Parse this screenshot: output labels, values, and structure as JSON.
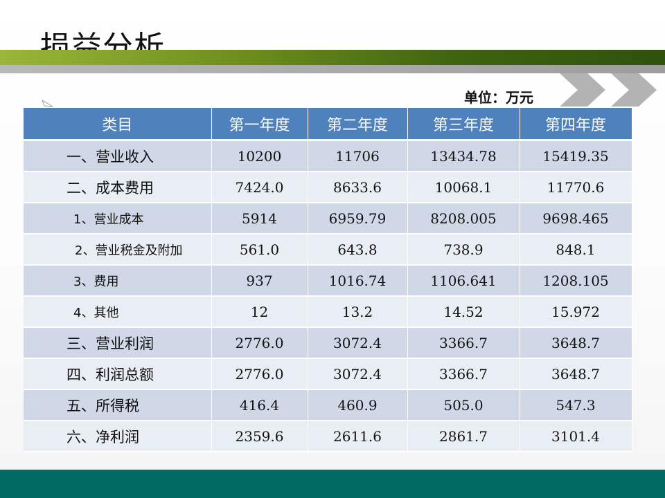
{
  "slide": {
    "title": "损益分析",
    "unit_label": "单位：万元"
  },
  "colors": {
    "header_blue": "#4f81bd",
    "row_dark": "#d0d8e8",
    "row_light": "#e9edf4",
    "band_green": "#4b7014",
    "footer_teal": "#006b63"
  },
  "table": {
    "headers": [
      "类目",
      "第一年度",
      "第二年度",
      "第三年度",
      "第四年度"
    ],
    "rows": [
      {
        "category": "一、营业收入",
        "level": 0,
        "values": [
          "10200",
          "11706",
          "13434.78",
          "15419.35"
        ]
      },
      {
        "category": "二、成本费用",
        "level": 0,
        "values": [
          "7424.0",
          "8633.6",
          "10068.1",
          "11770.6"
        ]
      },
      {
        "category": "1、营业成本",
        "level": 1,
        "values": [
          "5914",
          "6959.79",
          "8208.005",
          "9698.465"
        ]
      },
      {
        "category": "2、营业税金及附加",
        "level": 2,
        "values": [
          "561.0",
          "643.8",
          "738.9",
          "848.1"
        ]
      },
      {
        "category": "3、费用",
        "level": 1,
        "values": [
          "937",
          "1016.74",
          "1106.641",
          "1208.105"
        ]
      },
      {
        "category": "4、其他",
        "level": 1,
        "values": [
          "12",
          "13.2",
          "14.52",
          "15.972"
        ]
      },
      {
        "category": "三、营业利润",
        "level": 0,
        "values": [
          "2776.0",
          "3072.4",
          "3366.7",
          "3648.7"
        ]
      },
      {
        "category": "四、利润总额",
        "level": 0,
        "values": [
          "2776.0",
          "3072.4",
          "3366.7",
          "3648.7"
        ]
      },
      {
        "category": "五、所得税",
        "level": 0,
        "values": [
          "416.4",
          "460.9",
          "505.0",
          "547.3"
        ]
      },
      {
        "category": "六、净利润",
        "level": 0,
        "values": [
          "2359.6",
          "2611.6",
          "2861.7",
          "3101.4"
        ]
      }
    ]
  }
}
